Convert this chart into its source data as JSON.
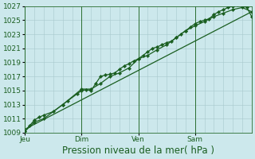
{
  "xlabel": "Pression niveau de la mer( hPa )",
  "background_color": "#cce8ec",
  "plot_bg_color": "#cce8ec",
  "grid_color": "#a8c8cc",
  "line_color": "#1a5e20",
  "marker_color": "#1a5e20",
  "ylim": [
    1009,
    1027
  ],
  "yticks": [
    1009,
    1011,
    1013,
    1015,
    1017,
    1019,
    1021,
    1023,
    1025,
    1027
  ],
  "day_labels": [
    "Jeu",
    "Dim",
    "Ven",
    "Sam"
  ],
  "day_positions": [
    0,
    24,
    48,
    72
  ],
  "xlim": [
    0,
    96
  ],
  "xgrid_step": 4,
  "line1_x": [
    0,
    2,
    4,
    6,
    8,
    12,
    16,
    18,
    22,
    24,
    26,
    28,
    30,
    32,
    34,
    36,
    38,
    40,
    42,
    44,
    46,
    48,
    50,
    52,
    54,
    56,
    58,
    60,
    62,
    64,
    66,
    68,
    70,
    72,
    74,
    76,
    78,
    80,
    82,
    84,
    86,
    88,
    90,
    92,
    94,
    96
  ],
  "line1_y": [
    1009.2,
    1010.0,
    1010.8,
    1011.2,
    1011.5,
    1012.0,
    1013.0,
    1013.5,
    1014.5,
    1015.0,
    1015.1,
    1015.0,
    1016.0,
    1017.0,
    1017.2,
    1017.3,
    1017.5,
    1018.0,
    1018.5,
    1018.8,
    1019.2,
    1019.5,
    1020.0,
    1020.5,
    1021.0,
    1021.2,
    1021.5,
    1021.8,
    1022.0,
    1022.5,
    1023.0,
    1023.5,
    1024.0,
    1024.5,
    1024.8,
    1025.0,
    1025.2,
    1025.8,
    1026.2,
    1026.5,
    1026.8,
    1027.0,
    1027.2,
    1027.1,
    1026.8,
    1025.5
  ],
  "line2_x": [
    0,
    4,
    8,
    16,
    24,
    28,
    32,
    36,
    40,
    44,
    48,
    52,
    56,
    60,
    64,
    68,
    72,
    76,
    80,
    84,
    88,
    92,
    96
  ],
  "line2_y": [
    1009.2,
    1010.5,
    1011.0,
    1013.0,
    1015.2,
    1015.2,
    1016.0,
    1017.0,
    1017.5,
    1018.2,
    1019.5,
    1020.0,
    1020.8,
    1021.5,
    1022.5,
    1023.5,
    1024.2,
    1024.8,
    1025.5,
    1026.0,
    1026.5,
    1026.8,
    1026.2
  ],
  "line3_x": [
    0,
    96
  ],
  "line3_y": [
    1009.5,
    1026.2
  ],
  "tick_label_color": "#1a5e20",
  "tick_label_size": 6.5,
  "xlabel_size": 8.5
}
